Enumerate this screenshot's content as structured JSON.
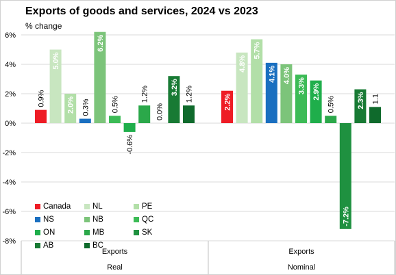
{
  "chart_data": {
    "type": "bar",
    "title": "Exports of goods and services, 2024 vs 2023",
    "ylabel": "% change",
    "ylim": [
      -8,
      6
    ],
    "yticks": [
      -8,
      -6,
      -4,
      -2,
      0,
      2,
      4,
      6
    ],
    "ytick_labels": [
      "-8%",
      "-6%",
      "-4%",
      "-2%",
      "0%",
      "2%",
      "4%",
      "6%"
    ],
    "grid": true,
    "legend_position": "bottom-left",
    "groups": [
      {
        "category": "Exports",
        "group": "Real"
      },
      {
        "category": "Exports",
        "group": "Nominal"
      }
    ],
    "series": [
      {
        "name": "Canada",
        "color": "#ee1c25",
        "values": [
          0.9,
          2.2
        ],
        "labels": [
          "0.9%",
          "2.2%"
        ]
      },
      {
        "name": "NL",
        "color": "#c8e6c0",
        "values": [
          5.0,
          4.8
        ],
        "labels": [
          "5.0%",
          "4.8%"
        ]
      },
      {
        "name": "PE",
        "color": "#b2dfa8",
        "values": [
          2.0,
          5.7
        ],
        "labels": [
          "2.0%",
          "5.7%"
        ]
      },
      {
        "name": "NS",
        "color": "#1a6fc0",
        "values": [
          0.3,
          4.1
        ],
        "labels": [
          "0.3%",
          "4.1%"
        ]
      },
      {
        "name": "NB",
        "color": "#7cc47a",
        "values": [
          6.2,
          4.0
        ],
        "labels": [
          "6.2%",
          "4.0%"
        ]
      },
      {
        "name": "QC",
        "color": "#3cbb56",
        "values": [
          0.5,
          3.3
        ],
        "labels": [
          "0.5%",
          "3.3%"
        ]
      },
      {
        "name": "ON",
        "color": "#1fae4b",
        "values": [
          -0.6,
          2.9
        ],
        "labels": [
          "-0.6%",
          "2.9%"
        ]
      },
      {
        "name": "MB",
        "color": "#2ba84a",
        "values": [
          1.2,
          0.5
        ],
        "labels": [
          "1.2%",
          "0.5%"
        ]
      },
      {
        "name": "SK",
        "color": "#1f9140",
        "values": [
          0.0,
          -7.2
        ],
        "labels": [
          "0.0%",
          "-7.2%"
        ]
      },
      {
        "name": "AB",
        "color": "#187a34",
        "values": [
          3.2,
          2.3
        ],
        "labels": [
          "3.2%",
          "2.3%"
        ]
      },
      {
        "name": "BC",
        "color": "#0f6a2c",
        "values": [
          1.2,
          1.1
        ],
        "labels": [
          "1.2%",
          "1.1"
        ]
      }
    ]
  }
}
